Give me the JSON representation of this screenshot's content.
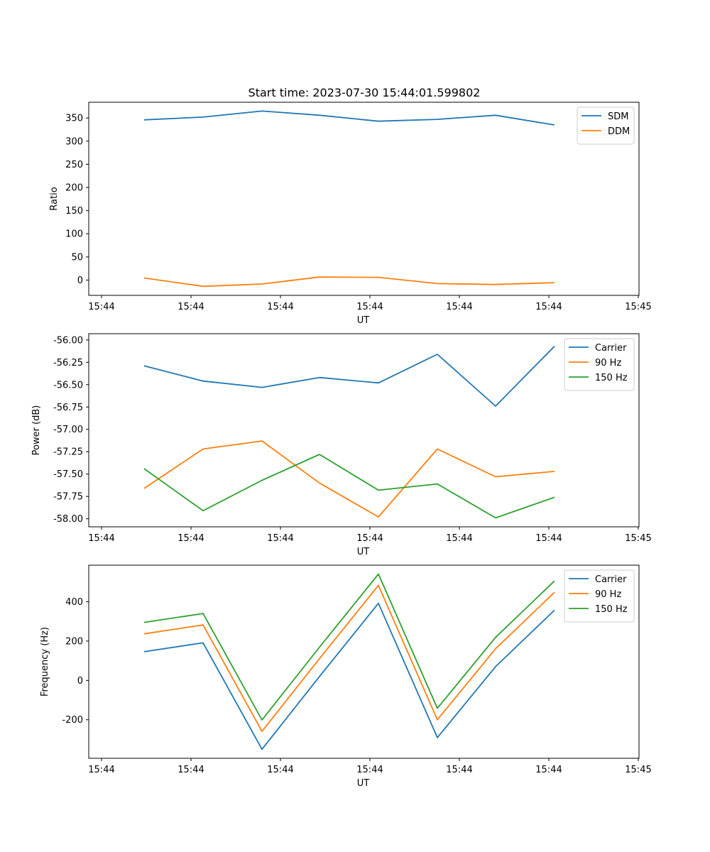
{
  "figure": {
    "title": "Start time: 2023-07-30 15:44:01.599802"
  },
  "chart_data": [
    {
      "type": "line",
      "xlabel": "UT",
      "ylabel": "Ratio",
      "x_ticks": [
        "15:44",
        "15:44",
        "15:44",
        "15:44",
        "15:44",
        "15:44",
        "15:45"
      ],
      "ylim": [
        -33,
        384
      ],
      "y_ticks": [
        "0",
        "50",
        "100",
        "150",
        "200",
        "250",
        "300",
        "350"
      ],
      "y_tick_values": [
        0,
        50,
        100,
        150,
        200,
        250,
        300,
        350
      ],
      "legend_position": "top-right",
      "series": [
        {
          "name": "SDM",
          "color": "#1f77b4",
          "values": [
            346,
            352,
            365,
            356,
            343,
            347,
            356,
            335
          ]
        },
        {
          "name": "DDM",
          "color": "#ff7f0e",
          "values": [
            4.5,
            -13.5,
            -8.5,
            6.5,
            6.0,
            -7.5,
            -9.5,
            -5.5
          ]
        }
      ]
    },
    {
      "type": "line",
      "xlabel": "UT",
      "ylabel": "Power (dB)",
      "x_ticks": [
        "15:44",
        "15:44",
        "15:44",
        "15:44",
        "15:44",
        "15:44",
        "15:45"
      ],
      "ylim": [
        -58.09,
        -55.93
      ],
      "y_ticks": [
        "-58.00",
        "-57.75",
        "-57.50",
        "-57.25",
        "-57.00",
        "-56.75",
        "-56.50",
        "-56.25",
        "-56.00"
      ],
      "y_tick_values": [
        -58.0,
        -57.75,
        -57.5,
        -57.25,
        -57.0,
        -56.75,
        -56.5,
        -56.25,
        -56.0
      ],
      "legend_position": "top-right",
      "series": [
        {
          "name": "Carrier",
          "color": "#1f77b4",
          "values": [
            -56.29,
            -56.46,
            -56.53,
            -56.42,
            -56.48,
            -56.16,
            -56.74,
            -56.07
          ]
        },
        {
          "name": "90 Hz",
          "color": "#ff7f0e",
          "values": [
            -57.66,
            -57.22,
            -57.13,
            -57.6,
            -57.98,
            -57.22,
            -57.53,
            -57.47
          ]
        },
        {
          "name": "150 Hz",
          "color": "#2ca02c",
          "values": [
            -57.44,
            -57.91,
            -57.57,
            -57.28,
            -57.68,
            -57.61,
            -57.99,
            -57.76
          ]
        }
      ]
    },
    {
      "type": "line",
      "xlabel": "UT",
      "ylabel": "Frequency (Hz)",
      "x_ticks": [
        "15:44",
        "15:44",
        "15:44",
        "15:44",
        "15:44",
        "15:44",
        "15:45"
      ],
      "ylim": [
        -396,
        586
      ],
      "y_ticks": [
        "-200",
        "0",
        "200",
        "400"
      ],
      "y_tick_values": [
        -200,
        0,
        200,
        400
      ],
      "legend_position": "top-right",
      "series": [
        {
          "name": "Carrier",
          "color": "#1f77b4",
          "values": [
            146,
            191,
            -350,
            20,
            392,
            -291,
            70,
            357
          ]
        },
        {
          "name": "90 Hz",
          "color": "#ff7f0e",
          "values": [
            237,
            282,
            -259,
            111,
            483,
            -200,
            161,
            448
          ]
        },
        {
          "name": "150 Hz",
          "color": "#2ca02c",
          "values": [
            295,
            340,
            -201,
            169,
            541,
            -142,
            219,
            506
          ]
        }
      ]
    }
  ]
}
